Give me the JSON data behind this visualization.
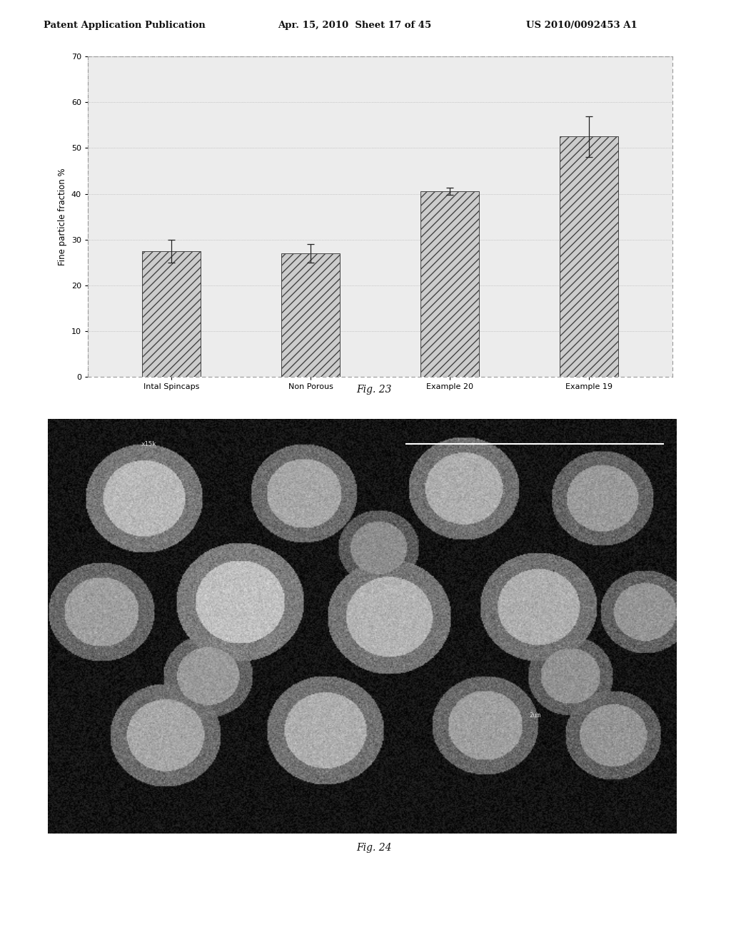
{
  "header_text_left": "Patent Application Publication",
  "header_text_mid": "Apr. 15, 2010  Sheet 17 of 45",
  "header_text_right": "US 2010/0092453 A1",
  "fig23_caption": "Fig. 23",
  "fig24_caption": "Fig. 24",
  "bar_categories": [
    "Intal Spincaps",
    "Non Porous",
    "Example 20",
    "Example 19"
  ],
  "bar_values": [
    27.5,
    27.0,
    40.5,
    52.5
  ],
  "bar_errors": [
    2.5,
    2.0,
    0.8,
    4.5
  ],
  "ylabel": "Fine particle fraction %",
  "ylim": [
    0,
    70
  ],
  "yticks": [
    0,
    10,
    20,
    30,
    40,
    50,
    60,
    70
  ],
  "hatch_pattern": "///",
  "bar_facecolor": "#cccccc",
  "bar_edgecolor": "#444444",
  "background_color": "#ffffff",
  "plot_bg_color": "#ececec",
  "grid_color": "#aaaaaa",
  "header_fontsize": 9.5,
  "axis_label_fontsize": 8.5,
  "tick_fontsize": 8,
  "caption_fontsize": 10
}
